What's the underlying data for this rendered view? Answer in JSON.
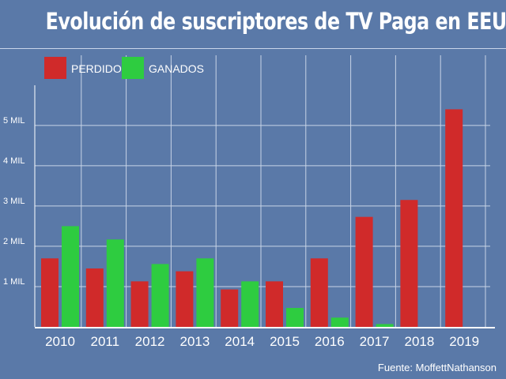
{
  "chart_data": {
    "type": "bar",
    "title": "Evolución de suscriptores de TV Paga en EEUU",
    "categories": [
      "2010",
      "2011",
      "2012",
      "2013",
      "2014",
      "2015",
      "2016",
      "2017",
      "2018",
      "2019"
    ],
    "series": [
      {
        "name": "PERDIDOS",
        "color": "#d02a2a",
        "values": [
          1.7,
          1.45,
          1.13,
          1.38,
          0.93,
          1.13,
          1.7,
          2.73,
          3.15,
          5.4
        ]
      },
      {
        "name": "GANADOS",
        "color": "#2ecc40",
        "values": [
          2.5,
          2.17,
          1.56,
          1.7,
          1.13,
          0.47,
          0.23,
          0.07,
          0,
          0
        ]
      }
    ],
    "yticks": [
      {
        "value": 1,
        "label": "1 MIL"
      },
      {
        "value": 2,
        "label": "2 MIL"
      },
      {
        "value": 3,
        "label": "3 MIL"
      },
      {
        "value": 4,
        "label": "4 MIL"
      },
      {
        "value": 5,
        "label": "5 MIL"
      }
    ],
    "ylim": [
      0,
      5.8
    ],
    "grid": true,
    "legend_position": "top-left",
    "source": "Fuente: MoffettNathanson"
  }
}
